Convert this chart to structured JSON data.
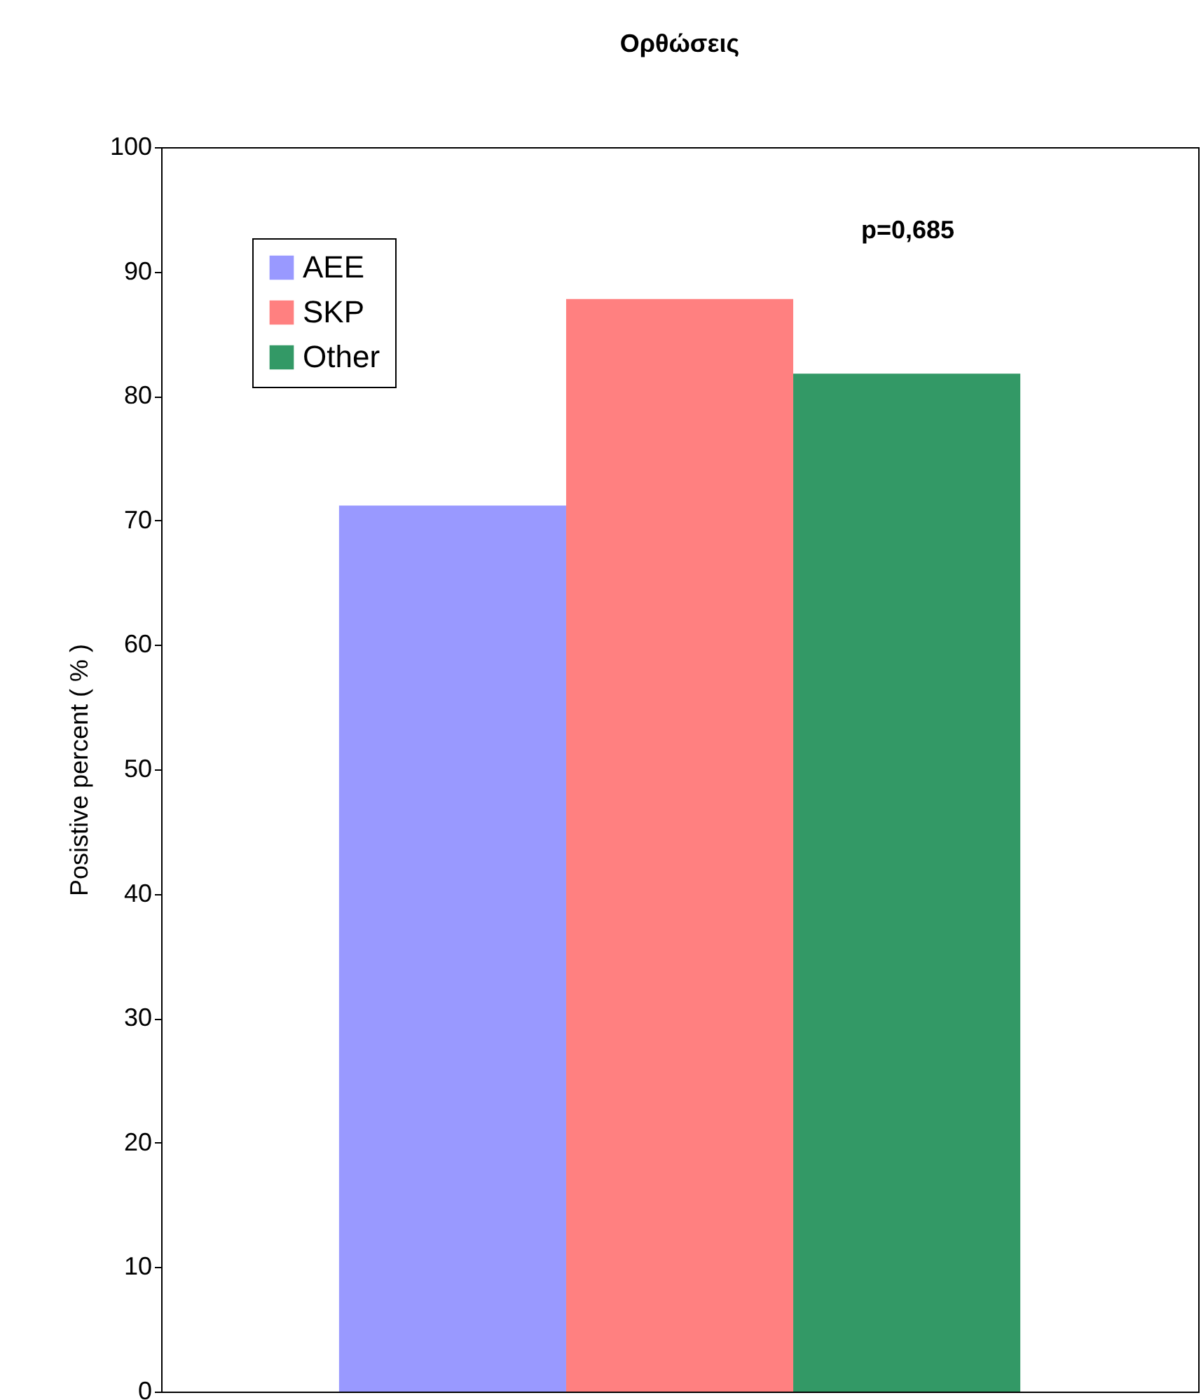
{
  "chart_data": {
    "type": "bar",
    "title": "Ορθώσεις",
    "ylabel": "Posistive percent  ( % )",
    "categories": [
      null
    ],
    "series": [
      {
        "name": "AEE",
        "color": "#9999ff",
        "values": [
          71.2
        ]
      },
      {
        "name": "SKP",
        "color": "#ff8080",
        "values": [
          87.8
        ]
      },
      {
        "name": "Other",
        "color": "#339966",
        "values": [
          81.8
        ]
      }
    ],
    "ylim": [
      0,
      100
    ],
    "yticks": [
      0,
      10,
      20,
      30,
      40,
      50,
      60,
      70,
      80,
      90,
      100
    ],
    "grid": false,
    "legend": "top left",
    "tick_labels": "y",
    "annotations": [
      "p=0,685"
    ]
  }
}
